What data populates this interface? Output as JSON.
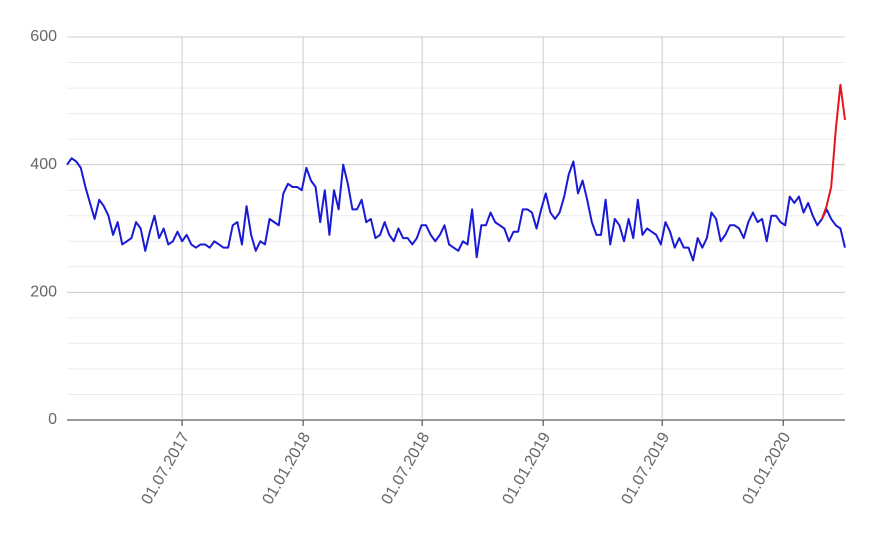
{
  "chart_data": {
    "type": "line",
    "x": [
      "2017-01-07",
      "2017-01-14",
      "2017-01-21",
      "2017-01-28",
      "2017-02-04",
      "2017-02-11",
      "2017-02-18",
      "2017-02-25",
      "2017-03-04",
      "2017-03-11",
      "2017-03-18",
      "2017-03-25",
      "2017-04-01",
      "2017-04-08",
      "2017-04-15",
      "2017-04-22",
      "2017-04-29",
      "2017-05-06",
      "2017-05-13",
      "2017-05-20",
      "2017-05-27",
      "2017-06-03",
      "2017-06-10",
      "2017-06-17",
      "2017-06-24",
      "2017-07-01",
      "2017-07-08",
      "2017-07-15",
      "2017-07-22",
      "2017-07-29",
      "2017-08-05",
      "2017-08-12",
      "2017-08-19",
      "2017-08-26",
      "2017-09-02",
      "2017-09-09",
      "2017-09-16",
      "2017-09-23",
      "2017-09-30",
      "2017-10-07",
      "2017-10-14",
      "2017-10-21",
      "2017-10-28",
      "2017-11-04",
      "2017-11-11",
      "2017-11-18",
      "2017-11-25",
      "2017-12-02",
      "2017-12-09",
      "2017-12-16",
      "2017-12-23",
      "2017-12-30",
      "2018-01-06",
      "2018-01-13",
      "2018-01-20",
      "2018-01-27",
      "2018-02-03",
      "2018-02-10",
      "2018-02-17",
      "2018-02-24",
      "2018-03-03",
      "2018-03-10",
      "2018-03-17",
      "2018-03-24",
      "2018-03-31",
      "2018-04-07",
      "2018-04-14",
      "2018-04-21",
      "2018-04-28",
      "2018-05-05",
      "2018-05-12",
      "2018-05-19",
      "2018-05-26",
      "2018-06-02",
      "2018-06-09",
      "2018-06-16",
      "2018-06-23",
      "2018-06-30",
      "2018-07-07",
      "2018-07-14",
      "2018-07-21",
      "2018-07-28",
      "2018-08-04",
      "2018-08-11",
      "2018-08-18",
      "2018-08-25",
      "2018-09-01",
      "2018-09-08",
      "2018-09-15",
      "2018-09-22",
      "2018-09-29",
      "2018-10-06",
      "2018-10-13",
      "2018-10-20",
      "2018-10-27",
      "2018-11-03",
      "2018-11-10",
      "2018-11-17",
      "2018-11-24",
      "2018-12-01",
      "2018-12-08",
      "2018-12-15",
      "2018-12-22",
      "2018-12-29",
      "2019-01-05",
      "2019-01-12",
      "2019-01-19",
      "2019-01-26",
      "2019-02-02",
      "2019-02-09",
      "2019-02-16",
      "2019-02-23",
      "2019-03-02",
      "2019-03-09",
      "2019-03-16",
      "2019-03-23",
      "2019-03-30",
      "2019-04-06",
      "2019-04-13",
      "2019-04-20",
      "2019-04-27",
      "2019-05-04",
      "2019-05-11",
      "2019-05-18",
      "2019-05-25",
      "2019-06-01",
      "2019-06-08",
      "2019-06-15",
      "2019-06-22",
      "2019-06-29",
      "2019-07-06",
      "2019-07-13",
      "2019-07-20",
      "2019-07-27",
      "2019-08-03",
      "2019-08-10",
      "2019-08-17",
      "2019-08-24",
      "2019-08-31",
      "2019-09-07",
      "2019-09-14",
      "2019-09-21",
      "2019-09-28",
      "2019-10-05",
      "2019-10-12",
      "2019-10-19",
      "2019-10-26",
      "2019-11-02",
      "2019-11-09",
      "2019-11-16",
      "2019-11-23",
      "2019-11-30",
      "2019-12-07",
      "2019-12-14",
      "2019-12-21",
      "2019-12-28",
      "2020-01-04",
      "2020-01-11",
      "2020-01-18",
      "2020-01-25",
      "2020-02-01",
      "2020-02-08",
      "2020-02-15",
      "2020-02-22",
      "2020-02-29",
      "2020-03-07",
      "2020-03-14",
      "2020-03-21",
      "2020-03-28",
      "2020-04-04"
    ],
    "series": [
      {
        "color": "#1a1ad6",
        "values": [
          400,
          410,
          405,
          395,
          365,
          340,
          315,
          345,
          335,
          320,
          290,
          310,
          275,
          280,
          285,
          310,
          300,
          265,
          295,
          320,
          285,
          300,
          275,
          280,
          295,
          280,
          290,
          275,
          270,
          275,
          275,
          270,
          280,
          275,
          270,
          270,
          305,
          310,
          275,
          335,
          290,
          265,
          280,
          275,
          315,
          310,
          305,
          355,
          370,
          365,
          365,
          360,
          395,
          375,
          365,
          310,
          360,
          290,
          360,
          330,
          400,
          370,
          330,
          330,
          345,
          310,
          315,
          285,
          290,
          310,
          290,
          280,
          300,
          285,
          285,
          275,
          285,
          305,
          305,
          290,
          280,
          290,
          305,
          275,
          270,
          265,
          280,
          275,
          330,
          255,
          305,
          305,
          325,
          310,
          305,
          300,
          280,
          295,
          295,
          330,
          330,
          325,
          300,
          330,
          355,
          325,
          315,
          325,
          350,
          385,
          405,
          355,
          375,
          345,
          310,
          290,
          290,
          345,
          275,
          315,
          305,
          280,
          315,
          285,
          345,
          290,
          300,
          295,
          290,
          275,
          310,
          295,
          270,
          285,
          270,
          270,
          250,
          285,
          270,
          285,
          325,
          315,
          280,
          290,
          305,
          305,
          300,
          285,
          310,
          325,
          310,
          315,
          280,
          320,
          320,
          310,
          305,
          350,
          340,
          350,
          325,
          340,
          320,
          305,
          315,
          330,
          315,
          305,
          300,
          270
        ]
      },
      {
        "color": "#e8141c",
        "values": [
          null,
          null,
          null,
          null,
          null,
          null,
          null,
          null,
          null,
          null,
          null,
          null,
          null,
          null,
          null,
          null,
          null,
          null,
          null,
          null,
          null,
          null,
          null,
          null,
          null,
          null,
          null,
          null,
          null,
          null,
          null,
          null,
          null,
          null,
          null,
          null,
          null,
          null,
          null,
          null,
          null,
          null,
          null,
          null,
          null,
          null,
          null,
          null,
          null,
          null,
          null,
          null,
          null,
          null,
          null,
          null,
          null,
          null,
          null,
          null,
          null,
          null,
          null,
          null,
          null,
          null,
          null,
          null,
          null,
          null,
          null,
          null,
          null,
          null,
          null,
          null,
          null,
          null,
          null,
          null,
          null,
          null,
          null,
          null,
          null,
          null,
          null,
          null,
          null,
          null,
          null,
          null,
          null,
          null,
          null,
          null,
          null,
          null,
          null,
          null,
          null,
          null,
          null,
          null,
          null,
          null,
          null,
          null,
          null,
          null,
          null,
          null,
          null,
          null,
          null,
          null,
          null,
          null,
          null,
          null,
          null,
          null,
          null,
          null,
          null,
          null,
          null,
          null,
          null,
          null,
          null,
          null,
          null,
          null,
          null,
          null,
          null,
          null,
          null,
          null,
          null,
          null,
          null,
          null,
          null,
          null,
          null,
          null,
          null,
          null,
          null,
          null,
          null,
          null,
          null,
          null,
          null,
          null,
          null,
          null,
          null,
          null,
          null,
          null,
          315,
          335,
          365,
          455,
          525,
          470
        ]
      }
    ],
    "xlim": [
      "2017-01-07",
      "2020-04-04"
    ],
    "xticks": [
      {
        "value": "2017-07-01",
        "label": "01.07.2017"
      },
      {
        "value": "2018-01-01",
        "label": "01.01.2018"
      },
      {
        "value": "2018-07-01",
        "label": "01.07.2018"
      },
      {
        "value": "2019-01-01",
        "label": "01.01.2019"
      },
      {
        "value": "2019-07-01",
        "label": "01.07.2019"
      },
      {
        "value": "2020-01-01",
        "label": "01.01.2020"
      }
    ],
    "ylim": [
      0,
      600
    ],
    "yticks": [
      0,
      200,
      400,
      600
    ],
    "yminorticks": [
      40,
      80,
      120,
      160,
      240,
      280,
      320,
      360,
      440,
      480,
      520,
      560
    ],
    "grid": true
  }
}
